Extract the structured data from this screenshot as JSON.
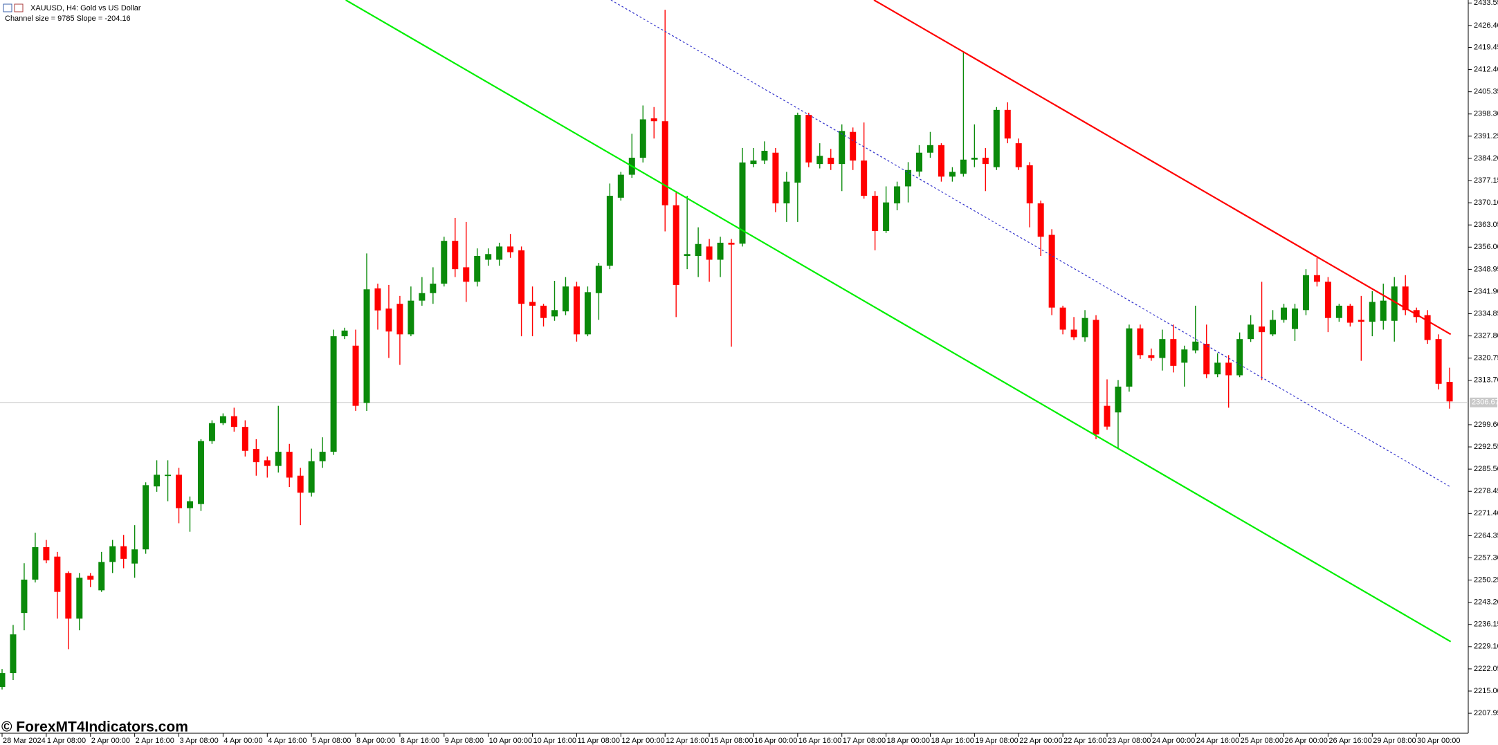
{
  "chart_data": {
    "type": "candlestick",
    "title": "XAUUSD, H4:  Gold vs US Dollar",
    "subtitle": "Channel size = 9785 Slope = -204.16",
    "watermark": "© ForexMT4Indicators.com",
    "categories": [
      "28 Mar 2024",
      null,
      null,
      null,
      "1 Apr 08:00",
      null,
      null,
      null,
      "2 Apr 00:00",
      null,
      null,
      null,
      "2 Apr 16:00",
      null,
      null,
      null,
      "3 Apr 08:00",
      null,
      null,
      null,
      "4 Apr 00:00",
      null,
      null,
      null,
      "4 Apr 16:00",
      null,
      null,
      null,
      "5 Apr 08:00",
      null,
      null,
      null,
      "8 Apr 00:00",
      null,
      null,
      null,
      "8 Apr 16:00",
      null,
      null,
      null,
      "9 Apr 08:00",
      null,
      null,
      null,
      "10 Apr 00:00",
      null,
      null,
      null,
      "10 Apr 16:00",
      null,
      null,
      null,
      "11 Apr 08:00",
      null,
      null,
      null,
      "12 Apr 00:00",
      null,
      null,
      null,
      "12 Apr 16:00",
      null,
      null,
      null,
      "15 Apr 08:00",
      null,
      null,
      null,
      "16 Apr 00:00",
      null,
      null,
      null,
      "16 Apr 16:00",
      null,
      null,
      null,
      "17 Apr 08:00",
      null,
      null,
      null,
      "18 Apr 00:00",
      null,
      null,
      null,
      "18 Apr 16:00",
      null,
      null,
      null,
      "19 Apr 08:00",
      null,
      null,
      null,
      "22 Apr 00:00",
      null,
      null,
      null,
      "22 Apr 16:00",
      null,
      null,
      null,
      "23 Apr 08:00",
      null,
      null,
      null,
      "24 Apr 00:00",
      null,
      null,
      null,
      "24 Apr 16:00",
      null,
      null,
      null,
      "25 Apr 08:00",
      null,
      null,
      null,
      "26 Apr 00:00",
      null,
      null,
      null,
      "26 Apr 16:00",
      null,
      null,
      null,
      "29 Apr 08:00",
      null,
      null,
      null,
      "30 Apr 00:00",
      null,
      null,
      null
    ],
    "open": [
      2216.3,
      2220.7,
      2239.8,
      2250.4,
      2260.7,
      2257.7,
      2252.5,
      2238,
      2251.6,
      2247,
      2256,
      2261,
      2255.5,
      2260,
      2280,
      2283.3,
      2283.7,
      2273.1,
      2274.4,
      2294.4,
      2300.1,
      2302.3,
      2298.9,
      2291.9,
      2288.3,
      2286.5,
      2291,
      2283.4,
      2278,
      2288,
      2291,
      2327.7,
      2324.7,
      2306.5,
      2342.9,
      2336.5,
      2338,
      2328.3,
      2339,
      2341.4,
      2344.4,
      2358,
      2349.6,
      2345,
      2352,
      2352,
      2356.2,
      2355,
      2338.6,
      2337.4,
      2334,
      2335.6,
      2343.5,
      2328.3,
      2341.4,
      2350.1,
      2371.7,
      2379,
      2384.4,
      2396.9,
      2396,
      2369.3,
      2353.2,
      2353.2,
      2356.2,
      2352,
      2357.4,
      2357.1,
      2382.4,
      2383.5,
      2386,
      2369.9,
      2376.5,
      2398,
      2382.4,
      2384.4,
      2382.4,
      2392.6,
      2383.5,
      2372.3,
      2361.1,
      2369.9,
      2375.3,
      2380,
      2386,
      2388.4,
      2378.4,
      2379.3,
      2383.8,
      2384.4,
      2381.4,
      2399.6,
      2389,
      2382,
      2369.9,
      2359.9,
      2336.8,
      2329.8,
      2327.4,
      2332.9,
      2305.6,
      2303.5,
      2311.7,
      2330.2,
      2321.7,
      2320.8,
      2326.8,
      2319.3,
      2323.2,
      2325.3,
      2315.6,
      2319.3,
      2315.3,
      2326.8,
      2330.8,
      2328.3,
      2332.9,
      2330,
      2336,
      2347.1,
      2345,
      2333.5,
      2337.4,
      2332.9,
      2332.3,
      2332.6,
      2332.6,
      2343.5,
      2336,
      2334.4,
      2326.8,
      2313.2
    ],
    "high": [
      2222,
      2236,
      2255.6,
      2265.3,
      2263,
      2259.2,
      2253,
      2252.5,
      2252.5,
      2259.2,
      2263,
      2264.6,
      2267.7,
      2281.3,
      2288.3,
      2288.3,
      2285.9,
      2276.8,
      2295,
      2301,
      2303.2,
      2305,
      2301,
      2295,
      2289.5,
      2305.6,
      2293.5,
      2285.9,
      2292,
      2295.6,
      2329.8,
      2330.4,
      2329.8,
      2354,
      2344.4,
      2344,
      2340.5,
      2343.5,
      2346.5,
      2349.6,
      2359.3,
      2365.3,
      2364,
      2355.6,
      2355.6,
      2357.4,
      2360.2,
      2356.2,
      2343.5,
      2338,
      2345.3,
      2346.5,
      2345,
      2343.5,
      2351,
      2376.2,
      2379.9,
      2392,
      2401,
      2400.5,
      2431.4,
      2373.8,
      2372.3,
      2362.3,
      2358.6,
      2359.3,
      2358.6,
      2387.5,
      2387.5,
      2389.6,
      2387.5,
      2379.9,
      2398.7,
      2398.7,
      2389,
      2387.2,
      2395,
      2394,
      2395.6,
      2373.8,
      2375.3,
      2376.8,
      2383,
      2388.4,
      2392.6,
      2389,
      2381.4,
      2417.8,
      2395,
      2387.5,
      2400.5,
      2402,
      2390.5,
      2383,
      2370.8,
      2361.7,
      2337.4,
      2333.8,
      2336,
      2334.4,
      2314,
      2313.8,
      2331.4,
      2331.4,
      2323.8,
      2329.8,
      2331.4,
      2324.7,
      2337.4,
      2331.4,
      2322.3,
      2321.7,
      2328.9,
      2334.4,
      2345,
      2336,
      2338,
      2338,
      2349,
      2352.6,
      2346.5,
      2338,
      2338,
      2340.5,
      2342,
      2344.4,
      2346.5,
      2347.1,
      2336.8,
      2336,
      2328.3,
      2317.7
    ],
    "low": [
      2215.5,
      2218.5,
      2234.3,
      2249.5,
      2255.6,
      2238,
      2228.3,
      2234.3,
      2248,
      2246.5,
      2252.5,
      2254,
      2251,
      2258.6,
      2278.3,
      2275.3,
      2268.3,
      2265.6,
      2272.2,
      2293.5,
      2299.5,
      2297.4,
      2289.5,
      2283.4,
      2282.8,
      2284.4,
      2279.8,
      2267.7,
      2276.8,
      2285.9,
      2290,
      2326.8,
      2304,
      2304,
      2329.8,
      2320.8,
      2318.6,
      2327.7,
      2337.4,
      2338,
      2343.5,
      2346.5,
      2338.6,
      2343.5,
      2350.1,
      2350.1,
      2352.6,
      2327.7,
      2327.7,
      2330.8,
      2332.6,
      2334.4,
      2326,
      2327.7,
      2332.9,
      2349,
      2370.8,
      2378,
      2382.9,
      2390.5,
      2361,
      2333.8,
      2349,
      2346.5,
      2345,
      2346.5,
      2324.4,
      2356.2,
      2381.4,
      2382.4,
      2367.1,
      2364,
      2364,
      2381.4,
      2381,
      2380.5,
      2373.8,
      2380.5,
      2371.4,
      2355,
      2360.5,
      2367.7,
      2370.2,
      2378.4,
      2384.4,
      2376.8,
      2376.8,
      2378.4,
      2381.4,
      2373.8,
      2380.5,
      2389,
      2380.5,
      2362.3,
      2353.2,
      2334.4,
      2328.3,
      2326.5,
      2326,
      2295,
      2298,
      2291.9,
      2310.1,
      2320.5,
      2319.9,
      2316.8,
      2316.2,
      2311.7,
      2322.3,
      2314.4,
      2314.7,
      2305,
      2314.7,
      2325.9,
      2313.8,
      2327.7,
      2332,
      2326.2,
      2334.4,
      2343.5,
      2329,
      2332.3,
      2330.8,
      2319.9,
      2327.7,
      2329.8,
      2326,
      2334.4,
      2332,
      2325.3,
      2310.8,
      2304.7
    ],
    "close": [
      2220.7,
      2233,
      2250.4,
      2260.7,
      2256.5,
      2246.5,
      2238,
      2251,
      2250.4,
      2256,
      2261,
      2257,
      2260,
      2280.4,
      2283.7,
      2283.7,
      2273.1,
      2275.3,
      2294.4,
      2300.1,
      2302.3,
      2298.9,
      2291.3,
      2287.7,
      2286.5,
      2291,
      2282.8,
      2278,
      2288,
      2291,
      2327.7,
      2329.5,
      2305.6,
      2342.6,
      2335.9,
      2329.2,
      2328.3,
      2339,
      2341.4,
      2344.4,
      2358,
      2349,
      2345,
      2353.2,
      2353.8,
      2356.2,
      2354.4,
      2338,
      2337.4,
      2333.5,
      2336,
      2343.5,
      2328.3,
      2341.7,
      2350.1,
      2372.3,
      2379,
      2384.4,
      2396.6,
      2396,
      2369.3,
      2344,
      2353.8,
      2357,
      2352,
      2357.4,
      2356.8,
      2382.9,
      2383.5,
      2386.6,
      2369.9,
      2376.8,
      2398,
      2382.9,
      2385,
      2382.4,
      2392.9,
      2383.5,
      2372.3,
      2361.1,
      2370.2,
      2375.3,
      2380.5,
      2386,
      2388.4,
      2378.4,
      2379.9,
      2383.8,
      2384.4,
      2382.4,
      2399.6,
      2390.5,
      2381.4,
      2369.9,
      2359.3,
      2336.8,
      2329.8,
      2327.4,
      2333.5,
      2296.5,
      2299,
      2311.7,
      2330.2,
      2321.7,
      2320.8,
      2326.8,
      2318.3,
      2323.5,
      2326,
      2315.6,
      2319.3,
      2315.3,
      2326.8,
      2331.4,
      2329,
      2332.9,
      2336.8,
      2336.5,
      2347.1,
      2345,
      2333.5,
      2337.4,
      2332,
      2332.3,
      2338.6,
      2339,
      2343.5,
      2336,
      2333.8,
      2326.5,
      2312.6,
      2307
    ],
    "up_color": "#0a8a0a",
    "down_color": "#ff0000",
    "ylim": [
      2201.6,
      2434.5
    ],
    "yticks": [
      2433.55,
      {
        "value": 2426.4,
        "label": "2426.40"
      },
      2419.45,
      {
        "value": 2412.4,
        "label": "2412.40"
      },
      2405.35,
      {
        "value": 2398.3,
        "label": "2398.30"
      },
      2391.25,
      {
        "value": 2384.2,
        "label": "2384.20"
      },
      2377.15,
      {
        "value": 2370.1,
        "label": "2370.10"
      },
      2363.05,
      {
        "value": 2356,
        "label": "2356.00"
      },
      2348.95,
      {
        "value": 2341.9,
        "label": "2341.90"
      },
      2334.85,
      {
        "value": 2327.8,
        "label": "2327.80"
      },
      2320.75,
      {
        "value": 2313.7,
        "label": "2313.70"
      },
      {
        "value": 2299.6,
        "label": "2299.60"
      },
      2292.55,
      {
        "value": 2285.5,
        "label": "2285.50"
      },
      2278.45,
      {
        "value": 2271.4,
        "label": "2271.40"
      },
      2264.35,
      {
        "value": 2257.3,
        "label": "2257.30"
      },
      2250.25,
      {
        "value": 2243.2,
        "label": "2243.20"
      },
      2236.15,
      {
        "value": 2229.1,
        "label": "2229.10"
      },
      2222.05,
      {
        "value": 2215,
        "label": "2215.00"
      },
      2207.95
    ],
    "current_price": 2306.67,
    "lines": [
      {
        "color": "#00ee00",
        "style": "solid",
        "x": [
          31.1,
          131.1
        ],
        "y": [
          2434.5,
          2230.7
        ]
      },
      {
        "color": "#ff0000",
        "style": "solid",
        "x": [
          78.9,
          131.1
        ],
        "y": [
          2434.5,
          2328.3
        ]
      },
      {
        "color": "#3333cc",
        "style": "dotted",
        "x": [
          55.1,
          131.1
        ],
        "y": [
          2434.5,
          2279.8
        ]
      }
    ]
  }
}
